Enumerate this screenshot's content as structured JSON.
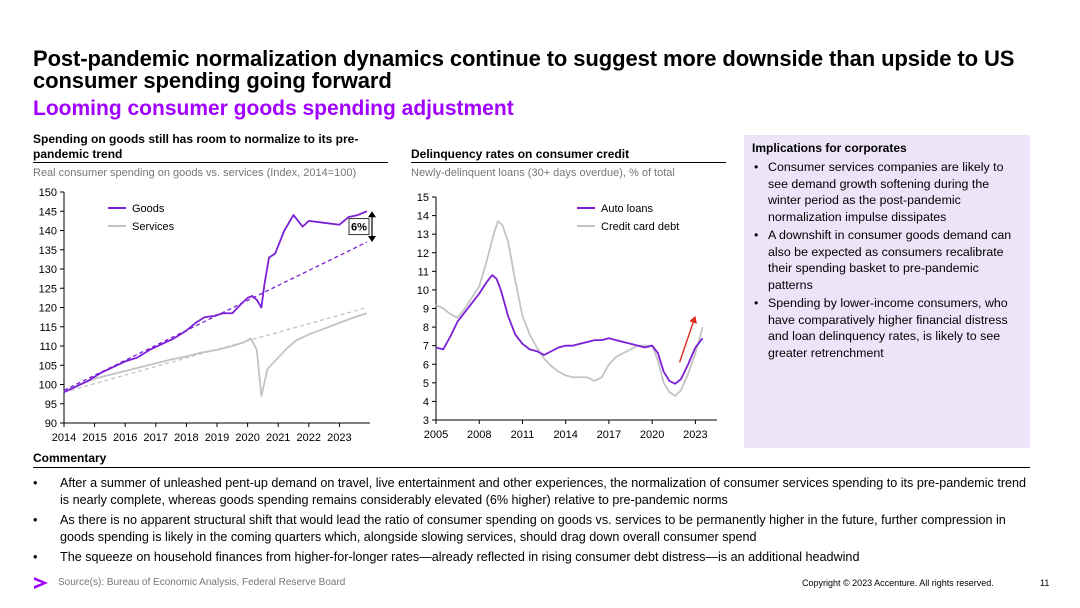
{
  "header": {
    "title": "Post-pandemic normalization dynamics continue to suggest more downside than upside to US consumer spending going forward",
    "subtitle": "Looming consumer goods spending adjustment"
  },
  "chart_data": [
    {
      "type": "line",
      "title": "Spending on goods still has room to normalize to its pre-pandemic trend",
      "subtitle": "Real consumer spending on goods vs. services (Index, 2014=100)",
      "x_ticks": [
        2014,
        2015,
        2016,
        2017,
        2018,
        2019,
        2020,
        2021,
        2022,
        2023
      ],
      "xlim": [
        2014,
        2024
      ],
      "ylim": [
        90,
        150
      ],
      "y_ticks": [
        90,
        95,
        100,
        105,
        110,
        115,
        120,
        125,
        130,
        135,
        140,
        145,
        150
      ],
      "annotation": "6%",
      "series": [
        {
          "name": "Goods",
          "color": "#7b1fd6",
          "points": [
            [
              2014.0,
              98
            ],
            [
              2014.4,
              99.5
            ],
            [
              2014.8,
              101
            ],
            [
              2015.2,
              103
            ],
            [
              2015.6,
              104.5
            ],
            [
              2016.0,
              106
            ],
            [
              2016.4,
              107
            ],
            [
              2016.8,
              109
            ],
            [
              2017.2,
              110.5
            ],
            [
              2017.6,
              112
            ],
            [
              2018.0,
              114
            ],
            [
              2018.3,
              116
            ],
            [
              2018.6,
              117.5
            ],
            [
              2018.9,
              117.8
            ],
            [
              2019.2,
              118.5
            ],
            [
              2019.5,
              118.5
            ],
            [
              2019.8,
              121
            ],
            [
              2020.0,
              122.5
            ],
            [
              2020.15,
              123
            ],
            [
              2020.3,
              122
            ],
            [
              2020.45,
              120
            ],
            [
              2020.55,
              126
            ],
            [
              2020.7,
              133
            ],
            [
              2020.9,
              134
            ],
            [
              2021.2,
              140
            ],
            [
              2021.5,
              144
            ],
            [
              2021.8,
              141
            ],
            [
              2022.0,
              142.5
            ],
            [
              2022.5,
              142
            ],
            [
              2023.0,
              141.5
            ],
            [
              2023.3,
              143.5
            ],
            [
              2023.6,
              144
            ],
            [
              2023.9,
              145
            ]
          ]
        },
        {
          "name": "Services",
          "color": "#c3c3c3",
          "points": [
            [
              2014.0,
              98
            ],
            [
              2014.5,
              100
            ],
            [
              2015.0,
              101.5
            ],
            [
              2015.5,
              102.5
            ],
            [
              2016.0,
              103.5
            ],
            [
              2016.5,
              104.5
            ],
            [
              2017.0,
              105.5
            ],
            [
              2017.5,
              106.5
            ],
            [
              2018.0,
              107.3
            ],
            [
              2018.5,
              108.3
            ],
            [
              2019.0,
              109
            ],
            [
              2019.5,
              110
            ],
            [
              2019.9,
              111
            ],
            [
              2020.1,
              112
            ],
            [
              2020.3,
              109
            ],
            [
              2020.45,
              97
            ],
            [
              2020.65,
              104
            ],
            [
              2021.0,
              107
            ],
            [
              2021.3,
              109.5
            ],
            [
              2021.6,
              111.5
            ],
            [
              2022.0,
              113
            ],
            [
              2022.5,
              114.5
            ],
            [
              2023.0,
              116
            ],
            [
              2023.5,
              117.5
            ],
            [
              2023.9,
              118.5
            ]
          ]
        }
      ],
      "trend_lines": [
        {
          "name": "Goods pre-pandemic trend",
          "color": "#7b1fd6",
          "points": [
            [
              2014.0,
              98.5
            ],
            [
              2023.9,
              137
            ]
          ]
        },
        {
          "name": "Services pre-pandemic trend",
          "color": "#c3c3c3",
          "points": [
            [
              2014.0,
              98
            ],
            [
              2023.9,
              120
            ]
          ]
        }
      ]
    },
    {
      "type": "line",
      "title": "Delinquency rates on consumer credit",
      "subtitle": "Newly-delinquent loans (30+ days overdue), % of total",
      "x_ticks": [
        2005,
        2008,
        2011,
        2014,
        2017,
        2020,
        2023
      ],
      "xlim": [
        2005,
        2024.5
      ],
      "ylim": [
        3,
        15
      ],
      "y_ticks": [
        3,
        4,
        5,
        6,
        7,
        8,
        9,
        10,
        11,
        12,
        13,
        14,
        15
      ],
      "series": [
        {
          "name": "Auto loans",
          "color": "#7b1fd6",
          "points": [
            [
              2005.0,
              6.9
            ],
            [
              2005.5,
              6.8
            ],
            [
              2006.0,
              7.5
            ],
            [
              2006.5,
              8.3
            ],
            [
              2007.0,
              8.8
            ],
            [
              2007.5,
              9.3
            ],
            [
              2008.0,
              9.8
            ],
            [
              2008.5,
              10.4
            ],
            [
              2008.9,
              10.8
            ],
            [
              2009.2,
              10.6
            ],
            [
              2009.5,
              10.0
            ],
            [
              2010.0,
              8.6
            ],
            [
              2010.5,
              7.6
            ],
            [
              2011.0,
              7.1
            ],
            [
              2011.5,
              6.8
            ],
            [
              2012.0,
              6.7
            ],
            [
              2012.5,
              6.5
            ],
            [
              2013.0,
              6.7
            ],
            [
              2013.5,
              6.9
            ],
            [
              2014.0,
              7.0
            ],
            [
              2014.5,
              7.0
            ],
            [
              2015.0,
              7.1
            ],
            [
              2015.5,
              7.2
            ],
            [
              2016.0,
              7.3
            ],
            [
              2016.5,
              7.3
            ],
            [
              2017.0,
              7.4
            ],
            [
              2017.5,
              7.3
            ],
            [
              2018.0,
              7.2
            ],
            [
              2018.5,
              7.1
            ],
            [
              2019.0,
              7.0
            ],
            [
              2019.5,
              6.9
            ],
            [
              2020.0,
              7.0
            ],
            [
              2020.4,
              6.6
            ],
            [
              2020.8,
              5.6
            ],
            [
              2021.2,
              5.1
            ],
            [
              2021.6,
              4.95
            ],
            [
              2022.0,
              5.2
            ],
            [
              2022.5,
              6.0
            ],
            [
              2023.0,
              6.9
            ],
            [
              2023.5,
              7.4
            ]
          ]
        },
        {
          "name": "Credit card debt",
          "color": "#c3c3c3",
          "points": [
            [
              2005.0,
              9.2
            ],
            [
              2005.5,
              9.0
            ],
            [
              2006.0,
              8.7
            ],
            [
              2006.5,
              8.5
            ],
            [
              2007.0,
              9.0
            ],
            [
              2007.5,
              9.6
            ],
            [
              2008.0,
              10.2
            ],
            [
              2008.5,
              11.5
            ],
            [
              2009.0,
              13.0
            ],
            [
              2009.3,
              13.7
            ],
            [
              2009.6,
              13.5
            ],
            [
              2010.0,
              12.6
            ],
            [
              2010.5,
              10.5
            ],
            [
              2011.0,
              8.6
            ],
            [
              2011.5,
              7.6
            ],
            [
              2012.0,
              6.9
            ],
            [
              2012.5,
              6.3
            ],
            [
              2013.0,
              5.9
            ],
            [
              2013.5,
              5.6
            ],
            [
              2014.0,
              5.4
            ],
            [
              2014.5,
              5.3
            ],
            [
              2015.0,
              5.3
            ],
            [
              2015.5,
              5.3
            ],
            [
              2016.0,
              5.1
            ],
            [
              2016.5,
              5.3
            ],
            [
              2017.0,
              6.0
            ],
            [
              2017.5,
              6.4
            ],
            [
              2018.0,
              6.6
            ],
            [
              2018.5,
              6.8
            ],
            [
              2019.0,
              7.0
            ],
            [
              2019.5,
              7.0
            ],
            [
              2020.0,
              7.0
            ],
            [
              2020.4,
              6.2
            ],
            [
              2020.8,
              5.0
            ],
            [
              2021.2,
              4.5
            ],
            [
              2021.6,
              4.3
            ],
            [
              2022.0,
              4.6
            ],
            [
              2022.5,
              5.5
            ],
            [
              2023.0,
              6.6
            ],
            [
              2023.5,
              8.0
            ]
          ]
        }
      ],
      "arrow": {
        "from": [
          2021.9,
          6.1
        ],
        "to": [
          2023.0,
          8.6
        ],
        "color": "#e0281e"
      }
    }
  ],
  "implications": {
    "title": "Implications for corporates",
    "items": [
      "Consumer services companies are likely to see demand growth softening during the winter period as the post-pandemic normalization impulse dissipates",
      "A downshift in consumer goods demand can also be expected as consumers recalibrate their spending basket to pre-pandemic patterns",
      "Spending by lower-income consumers, who have comparatively higher financial distress and loan delinquency rates, is likely to see greater retrenchment"
    ]
  },
  "commentary": {
    "title": "Commentary",
    "items": [
      "After a summer of unleashed pent-up demand on travel, live entertainment and other experiences, the normalization of consumer services spending to its pre-pandemic trend is nearly complete, whereas goods spending remains considerably elevated (6% higher) relative to pre-pandemic norms",
      "As there is no apparent structural shift that would lead the ratio of consumer spending on goods vs. services to be permanently higher in the future, further compression in goods spending is likely in the coming quarters which, alongside slowing services, should drag down overall consumer spend",
      "The squeeze on household finances from higher-for-longer rates—already reflected in rising consumer debt distress—is an additional headwind"
    ]
  },
  "footer": {
    "source": "Source(s): Bureau of Economic Analysis, Federal Reserve Board",
    "copyright": "Copyright © 2023 Accenture. All rights reserved.",
    "page_number": "11",
    "logo_icon": "accenture-logo-icon",
    "brand_color": "#a100ff"
  }
}
